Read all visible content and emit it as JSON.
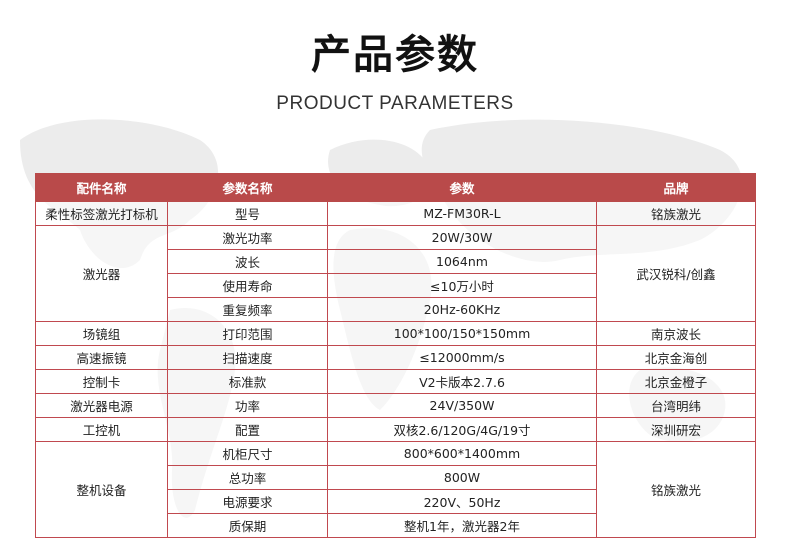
{
  "title": "产品参数",
  "subtitle": "PRODUCT PARAMETERS",
  "accent_color": "#b94a4a",
  "headers": [
    "配件名称",
    "参数名称",
    "参数",
    "品牌"
  ],
  "groups": [
    {
      "part": "柔性标签激光打标机",
      "brand": "铭族激光",
      "rows": [
        {
          "param": "型号",
          "value": "MZ-FM30R-L"
        }
      ]
    },
    {
      "part": "激光器",
      "brand": "武汉锐科/创鑫",
      "rows": [
        {
          "param": "激光功率",
          "value": "20W/30W"
        },
        {
          "param": "波长",
          "value": "1064nm"
        },
        {
          "param": "使用寿命",
          "value": "≤10万小时"
        },
        {
          "param": "重复频率",
          "value": "20Hz-60KHz"
        }
      ]
    },
    {
      "part": "场镜组",
      "brand": "南京波长",
      "rows": [
        {
          "param": "打印范围",
          "value": "100*100/150*150mm"
        }
      ]
    },
    {
      "part": "高速振镜",
      "brand": "北京金海创",
      "rows": [
        {
          "param": "扫描速度",
          "value": "≤12000mm/s"
        }
      ]
    },
    {
      "part": "控制卡",
      "brand": "北京金橙子",
      "rows": [
        {
          "param": "标准款",
          "value": "V2卡版本2.7.6"
        }
      ]
    },
    {
      "part": "激光器电源",
      "brand": "台湾明纬",
      "rows": [
        {
          "param": "功率",
          "value": "24V/350W"
        }
      ]
    },
    {
      "part": "工控机",
      "brand": "深圳研宏",
      "rows": [
        {
          "param": "配置",
          "value": "双核2.6/120G/4G/19寸"
        }
      ]
    },
    {
      "part": "整机设备",
      "brand": "铭族激光",
      "rows": [
        {
          "param": "机柜尺寸",
          "value": "800*600*1400mm"
        },
        {
          "param": "总功率",
          "value": "800W"
        },
        {
          "param": "电源要求",
          "value": "220V、50Hz"
        },
        {
          "param": "质保期",
          "value": "整机1年，激光器2年"
        }
      ]
    }
  ]
}
